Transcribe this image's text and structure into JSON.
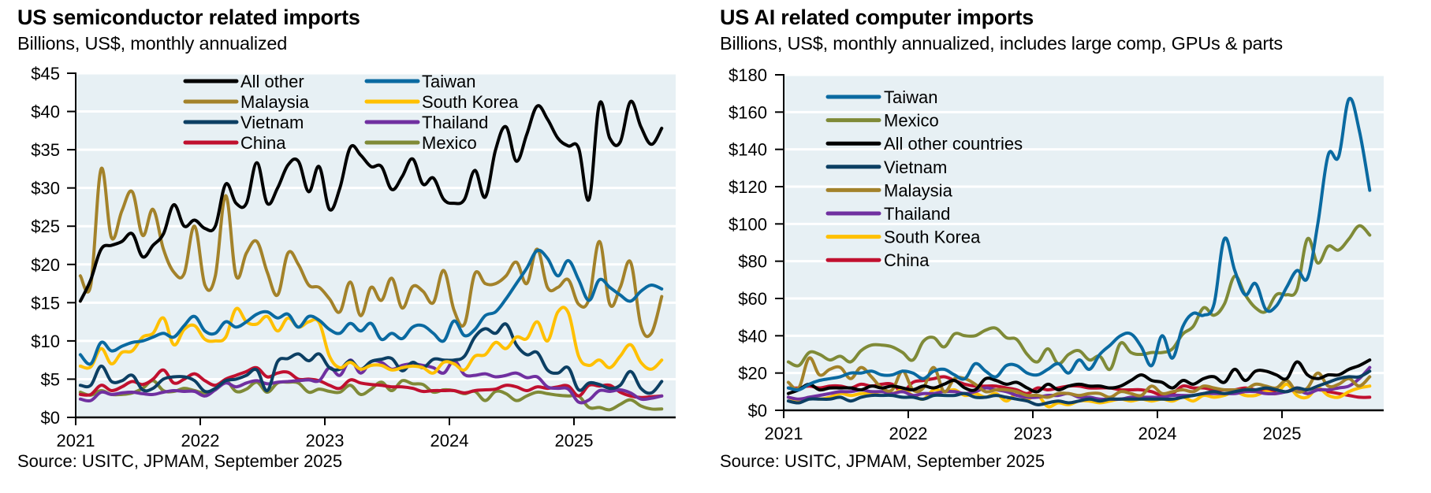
{
  "chart_data": [
    {
      "type": "line",
      "title": "US semiconductor related imports",
      "subtitle": "Billions, US$, monthly annualized",
      "source": "Source: USITC, JPMAM, September 2025",
      "xlabel": "",
      "ylabel": "",
      "x_start": "2021-01",
      "x_frequency": "monthly",
      "xticks": [
        "2021",
        "2022",
        "2023",
        "2024",
        "2025"
      ],
      "yticks": [
        "$0",
        "$5",
        "$10",
        "$15",
        "$20",
        "$25",
        "$30",
        "$35",
        "$40",
        "$45"
      ],
      "ylim": [
        0,
        45
      ],
      "ytick_step": 5,
      "grid": "horizontal",
      "legend_position": "top-center, two columns",
      "series": [
        {
          "name": "All other",
          "color": "#000000",
          "values": [
            15.2,
            18,
            22,
            22.5,
            23,
            24,
            21,
            22.5,
            24,
            27.8,
            25,
            25.8,
            24.7,
            25,
            30.5,
            28,
            28,
            33.3,
            28,
            30,
            33,
            33.5,
            29.5,
            32.8,
            27.2,
            30,
            35.3,
            34.3,
            32.8,
            32.8,
            29.8,
            31.5,
            33.8,
            30.5,
            31.3,
            28.5,
            28,
            28.5,
            32.3,
            28.8,
            35,
            38,
            33.5,
            37,
            40.7,
            39,
            36.5,
            35.5,
            35.2,
            28.5,
            41,
            36.5,
            36,
            41.3,
            38,
            35.7,
            37.8
          ]
        },
        {
          "name": "Taiwan",
          "color": "#0a6aa1",
          "values": [
            8.2,
            7,
            9.8,
            8.7,
            9.3,
            9.8,
            10,
            10.5,
            11,
            10.5,
            12,
            13.2,
            11.3,
            11,
            12.5,
            11.8,
            12.5,
            13.5,
            13.8,
            13,
            13.5,
            11.8,
            13.2,
            12.7,
            11.5,
            11,
            12.3,
            11.3,
            12.3,
            10.2,
            11,
            10.3,
            11.8,
            12,
            11,
            10,
            12.6,
            10.7,
            11.5,
            13.3,
            13.8,
            15.5,
            17.5,
            19.5,
            21.8,
            20.8,
            18.5,
            20.5,
            18,
            15.3,
            18,
            17,
            16,
            15.2,
            16.5,
            17.3,
            16.8
          ]
        },
        {
          "name": "Malaysia",
          "color": "#a3822a",
          "values": [
            18.5,
            17.3,
            32.5,
            23.5,
            27,
            29.5,
            23.8,
            27.2,
            22,
            19,
            18.8,
            25,
            17.3,
            18.5,
            29,
            18.5,
            21.5,
            23,
            19,
            16,
            21.5,
            20,
            17.3,
            17,
            15.5,
            13.8,
            17.7,
            13.3,
            17,
            15.3,
            18.2,
            14.3,
            17.1,
            16.5,
            15,
            19.2,
            14,
            12.2,
            18.8,
            17.5,
            17.5,
            18.5,
            20.3,
            17.5,
            22,
            17,
            17,
            18,
            14.8,
            15.5,
            23,
            14.8,
            17,
            20.3,
            12,
            11,
            15.8
          ]
        },
        {
          "name": "South Korea",
          "color": "#ffc000",
          "values": [
            6.7,
            6.6,
            9,
            7,
            8.5,
            8.7,
            10.5,
            11,
            13,
            9.5,
            11.5,
            12,
            10.2,
            10,
            10.5,
            14.2,
            12.5,
            12.2,
            13.2,
            11.3,
            13,
            11.8,
            12.5,
            12.4,
            8,
            6.5,
            7.2,
            6.3,
            6.8,
            6.8,
            6.2,
            6.5,
            6.7,
            6.5,
            5.8,
            7.2,
            7,
            6.2,
            8,
            8.2,
            9.8,
            9,
            10.5,
            10.3,
            12.5,
            10,
            13.8,
            13.7,
            8,
            6.8,
            7.5,
            6.5,
            8,
            9.5,
            7.2,
            6.3,
            7.5
          ]
        },
        {
          "name": "Vietnam",
          "color": "#0c3f63",
          "values": [
            4.2,
            4.2,
            6.7,
            4.7,
            4.8,
            5.5,
            3.6,
            3.8,
            5,
            5.3,
            5.3,
            4.8,
            3.4,
            3.8,
            4.8,
            5,
            5.5,
            6.2,
            3.5,
            7.3,
            7.7,
            8.3,
            7.4,
            8.3,
            6.5,
            6.3,
            7.4,
            6.3,
            7.3,
            7.6,
            7.7,
            6.1,
            7.2,
            6.5,
            7.6,
            7.5,
            7.5,
            8,
            10.5,
            11.6,
            11,
            12.2,
            9.5,
            8.2,
            8.5,
            6.2,
            5.8,
            6.5,
            3.6,
            4.5,
            4.3,
            3.8,
            4.2,
            6,
            3.8,
            3.2,
            4.7
          ]
        },
        {
          "name": "Thailand",
          "color": "#7030a0",
          "values": [
            2.4,
            2.2,
            3.3,
            3,
            3.2,
            3.3,
            3.1,
            3,
            3.3,
            3.5,
            3.4,
            3.4,
            2.8,
            3.6,
            4.5,
            4,
            4.5,
            4.8,
            4.4,
            4.6,
            4.7,
            4.8,
            4.9,
            4.8,
            6.5,
            5.5,
            7.5,
            5.8,
            7.3,
            7.2,
            6.3,
            6.8,
            7,
            6.8,
            6.5,
            5.8,
            7.4,
            5.6,
            5.5,
            5.7,
            5.3,
            5.5,
            5.8,
            5.2,
            5.3,
            4,
            3.8,
            3.7,
            2,
            2.3,
            3.5,
            3.4,
            3.6,
            3.2,
            2.4,
            2.5,
            2.8
          ]
        },
        {
          "name": "China",
          "color": "#c0102f",
          "values": [
            3,
            3,
            4.2,
            3.5,
            4,
            4.7,
            4.3,
            5,
            6.2,
            4.5,
            5,
            5.7,
            4.8,
            4.2,
            5,
            5.5,
            6,
            6.5,
            5.3,
            5.8,
            5.9,
            5,
            5,
            4.8,
            4.2,
            3.8,
            4.9,
            4.5,
            4.3,
            4.2,
            4,
            4,
            3.8,
            3.4,
            3.5,
            3.5,
            3.5,
            3.2,
            3.5,
            3.6,
            3.7,
            4.2,
            4,
            3.5,
            4,
            3.8,
            4,
            4.1,
            2.8,
            4.2,
            4.1,
            4.2,
            3.3,
            2.8,
            2.6,
            2.7,
            2.8
          ]
        },
        {
          "name": "Mexico",
          "color": "#7f8a37",
          "values": [
            3.3,
            2.9,
            3.5,
            3,
            3,
            3.2,
            3.8,
            4.8,
            3.5,
            3.4,
            3.8,
            3.5,
            3.2,
            3.6,
            4.8,
            3.4,
            3.7,
            4.6,
            3.3,
            4.5,
            4.6,
            4.5,
            3.3,
            3.7,
            3.4,
            3.3,
            4.2,
            3,
            3.7,
            4.6,
            3.5,
            4.8,
            4.4,
            4.3,
            3.3,
            3.6,
            3.5,
            3.1,
            3.4,
            2.2,
            3.4,
            3.1,
            2.2,
            2.8,
            3.3,
            3.1,
            2.9,
            2.8,
            2.8,
            1.3,
            1.3,
            1,
            1.7,
            2.3,
            1.5,
            1.1,
            1.1
          ]
        }
      ]
    },
    {
      "type": "line",
      "title": "US AI related computer imports",
      "subtitle": "Billions, US$, monthly annualized, includes large comp, GPUs & parts",
      "source": "Source: USITC, JPMAM, September 2025",
      "xlabel": "",
      "ylabel": "",
      "x_start": "2021-01",
      "x_frequency": "monthly",
      "xticks": [
        "2021",
        "2022",
        "2023",
        "2024",
        "2025"
      ],
      "yticks": [
        "$0",
        "$20",
        "$40",
        "$60",
        "$80",
        "$100",
        "$120",
        "$140",
        "$160",
        "$180"
      ],
      "ylim": [
        0,
        180
      ],
      "ytick_step": 20,
      "grid": "horizontal",
      "legend_position": "top-left, single column",
      "series": [
        {
          "name": "Taiwan",
          "color": "#0a6aa1",
          "values": [
            12,
            11,
            14,
            16,
            17,
            18,
            20,
            20,
            21,
            19,
            19,
            21,
            20,
            17,
            21,
            22,
            19,
            17,
            25,
            21,
            18,
            24,
            24,
            20,
            19,
            22,
            25,
            20,
            27,
            22,
            30,
            35,
            40,
            41,
            34,
            24,
            40,
            28,
            45,
            52,
            51,
            57,
            92,
            75,
            62,
            68,
            54,
            56,
            66,
            75,
            71,
            100,
            137,
            136,
            167,
            150,
            118
          ]
        },
        {
          "name": "Mexico",
          "color": "#7f8a37",
          "values": [
            26,
            24,
            31,
            30,
            27,
            29,
            26,
            32,
            35,
            35,
            34,
            31,
            27,
            37,
            39,
            34,
            41,
            40,
            40,
            43,
            44,
            39,
            38,
            30,
            26,
            33,
            25,
            30,
            32,
            27,
            29,
            22,
            36,
            31,
            30,
            31,
            31,
            33,
            41,
            45,
            55,
            51,
            57,
            72,
            62,
            55,
            53,
            62,
            62,
            65,
            92,
            79,
            88,
            86,
            92,
            99,
            94
          ]
        },
        {
          "name": "All other countries",
          "color": "#000000",
          "values": [
            9,
            11,
            14,
            11,
            12,
            12,
            12,
            11,
            13,
            12,
            13,
            12,
            11,
            13,
            12,
            14,
            16,
            12,
            11,
            17,
            16,
            14,
            15,
            12,
            10,
            14,
            11,
            13,
            14,
            13,
            13,
            12,
            13,
            16,
            19,
            16,
            15,
            12,
            16,
            14,
            17,
            18,
            15,
            22,
            16,
            21,
            21,
            19,
            17,
            26,
            19,
            17,
            19,
            19,
            22,
            24,
            27
          ]
        },
        {
          "name": "Vietnam",
          "color": "#0c3f63",
          "values": [
            5,
            4,
            6,
            6,
            6,
            7,
            5,
            7,
            8,
            8,
            8,
            7,
            7,
            6,
            8,
            8,
            8,
            9,
            7,
            7,
            8,
            7,
            6,
            5,
            3,
            4,
            5,
            4,
            5,
            6,
            5,
            6,
            6,
            6,
            6,
            6,
            6,
            6,
            7,
            8,
            9,
            10,
            9,
            10,
            11,
            11,
            12,
            11,
            10,
            12,
            11,
            13,
            15,
            17,
            18,
            18,
            21
          ]
        },
        {
          "name": "Malaysia",
          "color": "#a3822a",
          "values": [
            15,
            12,
            28,
            19,
            22,
            23,
            17,
            23,
            18,
            12,
            11,
            21,
            11,
            12,
            23,
            10,
            17,
            17,
            14,
            10,
            11,
            11,
            10,
            8,
            8,
            7,
            9,
            9,
            8,
            9,
            9,
            7,
            10,
            9,
            8,
            13,
            9,
            10,
            11,
            10,
            13,
            12,
            11,
            11,
            11,
            14,
            13,
            12,
            16,
            10,
            12,
            20,
            13,
            14,
            17,
            13,
            18
          ]
        },
        {
          "name": "Thailand",
          "color": "#7030a0",
          "values": [
            7,
            6,
            7,
            8,
            9,
            10,
            10,
            11,
            10,
            10,
            9,
            10,
            8,
            9,
            9,
            10,
            10,
            9,
            10,
            12,
            11,
            10,
            8,
            7,
            7,
            8,
            8,
            9,
            7,
            7,
            6,
            6,
            6,
            7,
            7,
            7,
            7,
            8,
            8,
            8,
            9,
            9,
            9,
            9,
            10,
            10,
            9,
            9,
            10,
            11,
            9,
            11,
            11,
            12,
            13,
            17,
            23
          ]
        },
        {
          "name": "South Korea",
          "color": "#ffc000",
          "values": [
            7,
            5,
            7,
            6,
            7,
            9,
            8,
            9,
            9,
            10,
            9,
            11,
            8,
            6,
            11,
            10,
            11,
            8,
            9,
            7,
            9,
            5,
            9,
            6,
            8,
            2,
            4,
            3,
            5,
            5,
            4,
            5,
            6,
            5,
            6,
            5,
            6,
            5,
            7,
            5,
            8,
            7,
            8,
            10,
            8,
            8,
            10,
            9,
            14,
            8,
            7,
            12,
            8,
            7,
            10,
            12,
            13
          ]
        },
        {
          "name": "China",
          "color": "#c0102f",
          "values": [
            12,
            12,
            13,
            12,
            13,
            13,
            12,
            14,
            13,
            14,
            14,
            10,
            15,
            16,
            17,
            18,
            16,
            14,
            13,
            13,
            13,
            12,
            11,
            9,
            12,
            11,
            12,
            13,
            13,
            12,
            12,
            12,
            11,
            11,
            11,
            10,
            8,
            9,
            13,
            12,
            12,
            11,
            11,
            11,
            12,
            11,
            11,
            10,
            10,
            12,
            9,
            11,
            10,
            9,
            8,
            7,
            7
          ]
        }
      ]
    }
  ]
}
